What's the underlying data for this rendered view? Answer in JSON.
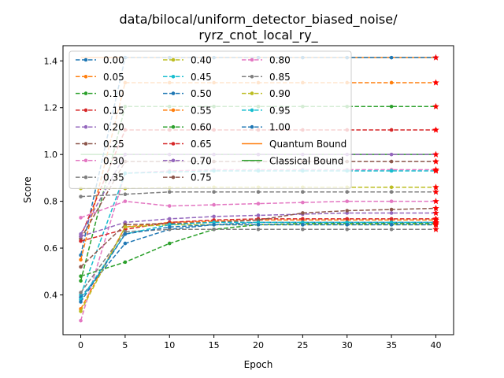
{
  "chart_data": {
    "type": "line",
    "title_lines": [
      "data/bilocal/uniform_detector_biased_noise/",
      "ryrz_cnot_local_ry_"
    ],
    "xlabel": "Epoch",
    "ylabel": "Score",
    "xlim": [
      -2,
      42
    ],
    "ylim": [
      0.23,
      1.465
    ],
    "x_ticks": [
      "0",
      "5",
      "10",
      "15",
      "20",
      "25",
      "30",
      "35",
      "40"
    ],
    "y_ticks": [
      "0.4",
      "0.6",
      "0.8",
      "1.0",
      "1.2",
      "1.4"
    ],
    "x": [
      0,
      5,
      10,
      15,
      20,
      25,
      30,
      35,
      40
    ],
    "legend_position": "upper left",
    "legend_columns": 3,
    "star_marker_color": "#ff0000",
    "series": [
      {
        "name": "0.00",
        "color": "#1f77b4",
        "values": [
          0.57,
          1.414,
          1.414,
          1.414,
          1.414,
          1.414,
          1.414,
          1.414,
          1.414
        ]
      },
      {
        "name": "0.05",
        "color": "#ff7f0e",
        "values": [
          0.55,
          1.307,
          1.307,
          1.307,
          1.307,
          1.307,
          1.307,
          1.307,
          1.307
        ]
      },
      {
        "name": "0.10",
        "color": "#2ca02c",
        "values": [
          0.46,
          1.205,
          1.205,
          1.205,
          1.205,
          1.205,
          1.205,
          1.205,
          1.205
        ]
      },
      {
        "name": "0.15",
        "color": "#d62728",
        "values": [
          0.65,
          1.105,
          1.105,
          1.105,
          1.105,
          1.105,
          1.105,
          1.105,
          1.105
        ]
      },
      {
        "name": "0.20",
        "color": "#9467bd",
        "values": [
          0.66,
          1.0,
          1.0,
          1.0,
          1.0,
          1.0,
          1.0,
          1.0,
          1.0
        ]
      },
      {
        "name": "0.25",
        "color": "#8c564b",
        "values": [
          0.64,
          0.97,
          0.97,
          0.97,
          0.97,
          0.97,
          0.97,
          0.97,
          0.97
        ]
      },
      {
        "name": "0.30",
        "color": "#e377c2",
        "values": [
          0.29,
          0.92,
          0.93,
          0.935,
          0.935,
          0.935,
          0.935,
          0.935,
          0.935
        ]
      },
      {
        "name": "0.35",
        "color": "#7f7f7f",
        "values": [
          0.82,
          0.83,
          0.84,
          0.84,
          0.84,
          0.84,
          0.84,
          0.84,
          0.84
        ]
      },
      {
        "name": "0.40",
        "color": "#bcbd22",
        "values": [
          0.855,
          0.855,
          0.858,
          0.86,
          0.86,
          0.86,
          0.86,
          0.86,
          0.86
        ]
      },
      {
        "name": "0.45",
        "color": "#17becf",
        "values": [
          0.4,
          0.92,
          0.925,
          0.93,
          0.93,
          0.93,
          0.93,
          0.93,
          0.93
        ]
      },
      {
        "name": "0.50",
        "color": "#1f77b4",
        "values": [
          0.39,
          0.62,
          0.68,
          0.7,
          0.71,
          0.71,
          0.71,
          0.71,
          0.71
        ]
      },
      {
        "name": "0.55",
        "color": "#ff7f0e",
        "values": [
          0.34,
          0.69,
          0.71,
          0.715,
          0.72,
          0.72,
          0.72,
          0.72,
          0.72
        ]
      },
      {
        "name": "0.60",
        "color": "#2ca02c",
        "values": [
          0.48,
          0.54,
          0.62,
          0.68,
          0.7,
          0.705,
          0.705,
          0.705,
          0.705
        ]
      },
      {
        "name": "0.65",
        "color": "#d62728",
        "values": [
          0.63,
          0.68,
          0.71,
          0.72,
          0.725,
          0.725,
          0.725,
          0.725,
          0.725
        ]
      },
      {
        "name": "0.70",
        "color": "#9467bd",
        "values": [
          0.65,
          0.71,
          0.725,
          0.735,
          0.74,
          0.745,
          0.75,
          0.75,
          0.75
        ]
      },
      {
        "name": "0.75",
        "color": "#8c564b",
        "values": [
          0.52,
          0.7,
          0.705,
          0.71,
          0.72,
          0.75,
          0.76,
          0.765,
          0.77
        ]
      },
      {
        "name": "0.80",
        "color": "#e377c2",
        "values": [
          0.73,
          0.8,
          0.78,
          0.785,
          0.79,
          0.795,
          0.8,
          0.8,
          0.8
        ]
      },
      {
        "name": "0.85",
        "color": "#7f7f7f",
        "values": [
          0.41,
          0.67,
          0.68,
          0.68,
          0.68,
          0.68,
          0.68,
          0.68,
          0.68
        ]
      },
      {
        "name": "0.90",
        "color": "#bcbd22",
        "values": [
          0.33,
          0.69,
          0.7,
          0.7,
          0.7,
          0.7,
          0.7,
          0.7,
          0.7
        ]
      },
      {
        "name": "0.95",
        "color": "#17becf",
        "values": [
          0.38,
          0.66,
          0.7,
          0.71,
          0.71,
          0.71,
          0.71,
          0.71,
          0.71
        ]
      },
      {
        "name": "1.00",
        "color": "#1f77b4",
        "values": [
          0.37,
          0.66,
          0.69,
          0.7,
          0.7,
          0.7,
          0.7,
          0.7,
          0.7
        ]
      }
    ],
    "bounds": [
      {
        "name": "Quantum Bound",
        "color": "#ff7f0e",
        "value": 1.414
      },
      {
        "name": "Classical Bound",
        "color": "#2ca02c",
        "value": 1.0
      }
    ]
  }
}
